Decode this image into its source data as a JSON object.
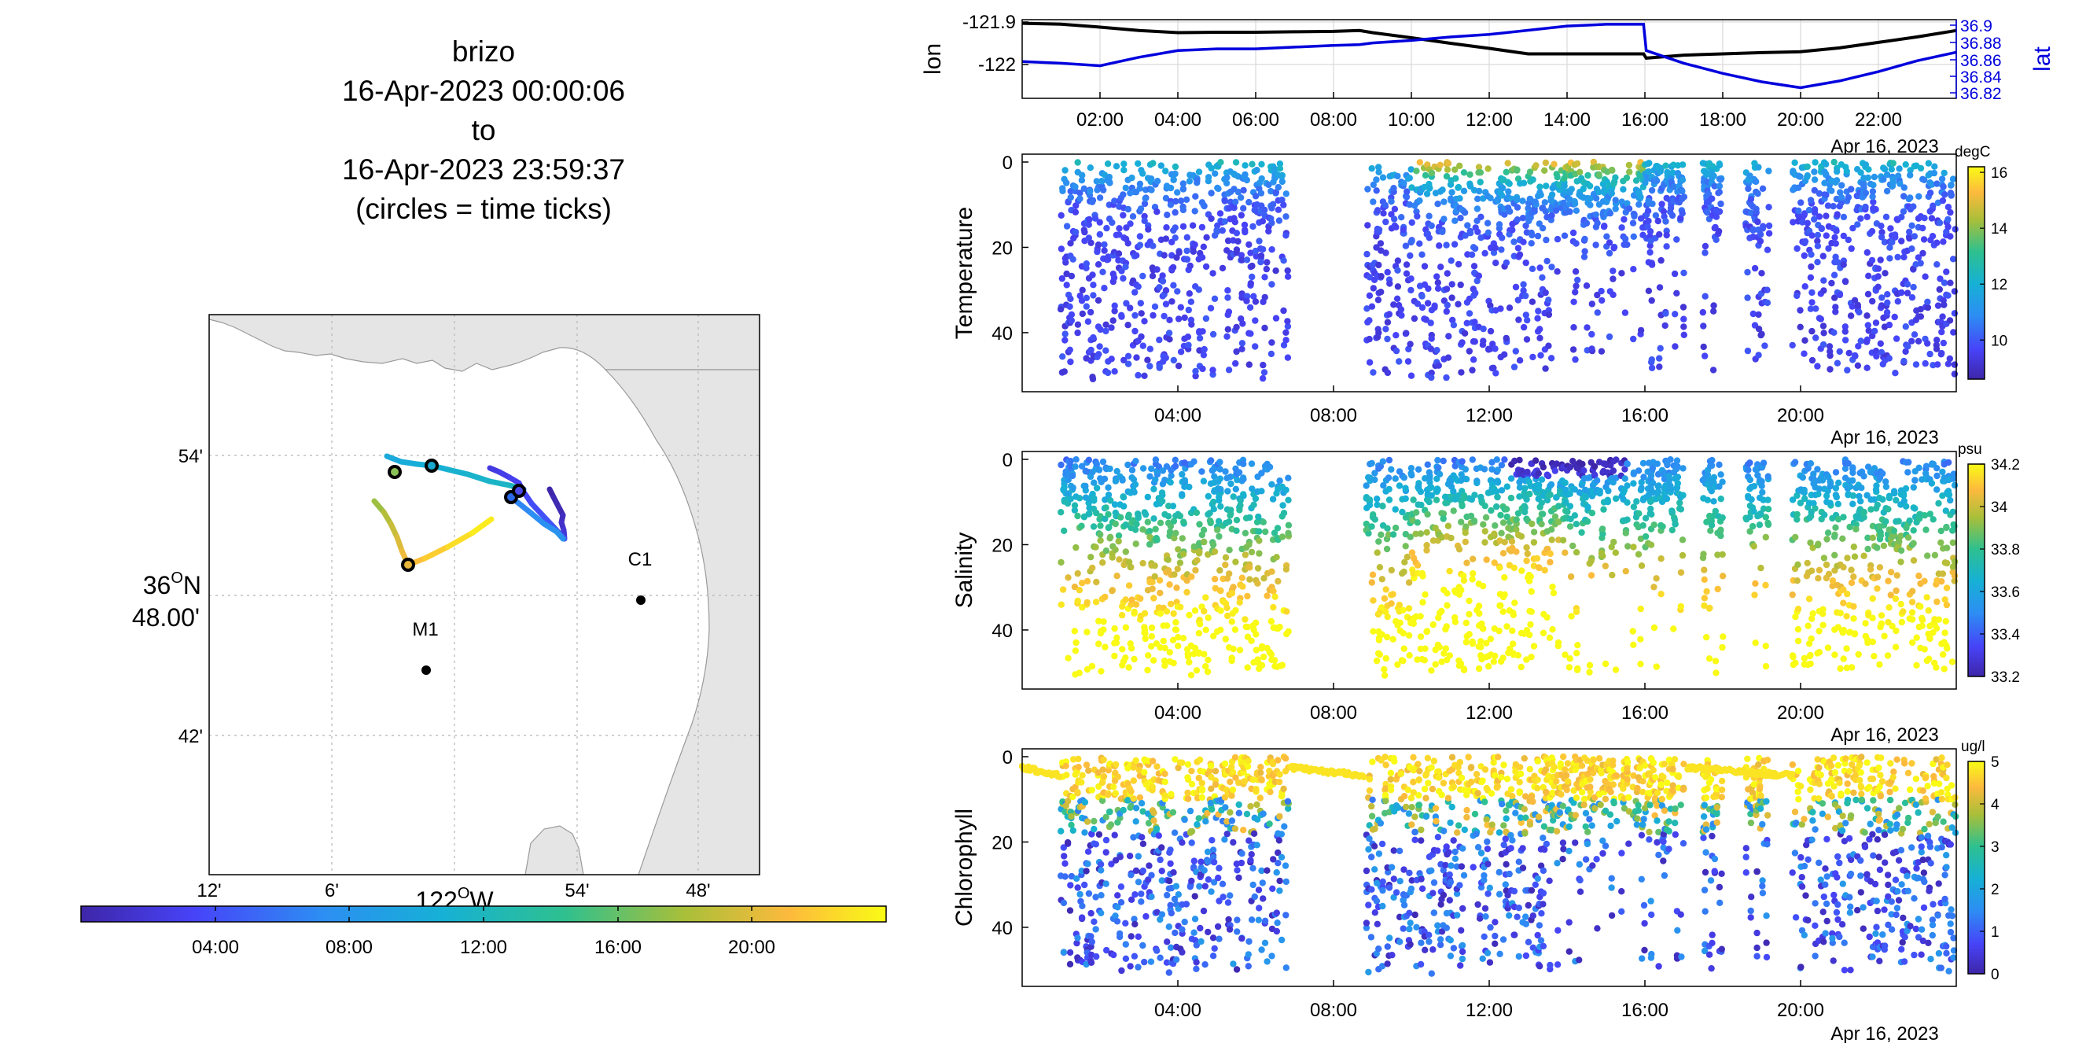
{
  "colors": {
    "lon_line": "#000000",
    "lat_line": "#0000dd",
    "land": "#e5e5e5",
    "parula": [
      "#3e26a8",
      "#4743f8",
      "#2d8ef3",
      "#16b1d5",
      "#2ec08f",
      "#a9bf39",
      "#fdba3d",
      "#f9fb15"
    ]
  },
  "title": {
    "line1": "brizo",
    "line2": "16-Apr-2023 00:00:06",
    "line3": "to",
    "line4": "16-Apr-2023 23:59:37",
    "line5": "(circles = time ticks)"
  },
  "map": {
    "lat_labels": [
      "54'",
      "42'"
    ],
    "lat_center_line1": "36",
    "lat_center_sup": "O",
    "lat_center_suffix": "N",
    "lat_center_line2": "48.00'",
    "lon_labels": [
      "12'",
      "6'",
      "54'",
      "48'"
    ],
    "lon_center": "122",
    "lon_center_sup": "O",
    "lon_center_suffix": "W",
    "stations": [
      "C1",
      "M1"
    ]
  },
  "time_colorbar": {
    "ticks": [
      "04:00",
      "08:00",
      "12:00",
      "16:00",
      "20:00"
    ]
  },
  "chart_data": [
    {
      "type": "line",
      "ylabel": "lon",
      "ylabel_right": "lat",
      "x": [
        "00:00",
        "01:00",
        "02:00",
        "03:00",
        "04:00",
        "05:00",
        "06:00",
        "07:00",
        "08:00",
        "08:40",
        "09:00",
        "10:00",
        "11:00",
        "12:00",
        "13:00",
        "14:00",
        "15:00",
        "15:58",
        "16:02",
        "17:00",
        "18:00",
        "19:00",
        "20:00",
        "21:00",
        "22:00",
        "23:00",
        "24:00"
      ],
      "series": [
        {
          "name": "lon",
          "values": [
            -121.903,
            -121.905,
            -121.912,
            -121.92,
            -121.925,
            -121.924,
            -121.924,
            -121.923,
            -121.922,
            -121.92,
            -121.925,
            -121.937,
            -121.95,
            -121.962,
            -121.975,
            -121.975,
            -121.975,
            -121.975,
            -121.985,
            -121.978,
            -121.975,
            -121.972,
            -121.97,
            -121.961,
            -121.948,
            -121.935,
            -121.92
          ]
        },
        {
          "name": "lat",
          "values": [
            36.857,
            36.855,
            36.852,
            36.862,
            36.87,
            36.872,
            36.872,
            36.874,
            36.876,
            36.877,
            36.879,
            36.882,
            36.886,
            36.889,
            36.894,
            36.899,
            36.901,
            36.901,
            36.87,
            36.855,
            36.843,
            36.833,
            36.826,
            36.834,
            36.845,
            36.858,
            36.868
          ]
        }
      ],
      "ytick_labels_left": [
        "-121.9",
        "-122"
      ],
      "ytick_labels_right": [
        "36.9",
        "36.88",
        "36.86",
        "36.84",
        "36.82"
      ],
      "xtick_labels": [
        "02:00",
        "04:00",
        "06:00",
        "08:00",
        "10:00",
        "12:00",
        "14:00",
        "16:00",
        "18:00",
        "20:00",
        "22:00"
      ],
      "date_label": "Apr 16, 2023",
      "grid": true
    },
    {
      "type": "scatter",
      "ylabel": "Temperature",
      "ytick_labels": [
        "0",
        "20",
        "40"
      ],
      "ylim": [
        0,
        52
      ],
      "xtick_labels": [
        "04:00",
        "08:00",
        "12:00",
        "16:00",
        "20:00"
      ],
      "date_label": "Apr 16, 2023",
      "colorbar": {
        "unit": "degC",
        "ticks": [
          "16",
          "14",
          "12",
          "10"
        ],
        "range": [
          8.6,
          16.2
        ]
      }
    },
    {
      "type": "scatter",
      "ylabel": "Salinity",
      "ytick_labels": [
        "0",
        "20",
        "40"
      ],
      "ylim": [
        0,
        52
      ],
      "xtick_labels": [
        "04:00",
        "08:00",
        "12:00",
        "16:00",
        "20:00"
      ],
      "date_label": "Apr 16, 2023",
      "colorbar": {
        "unit": "psu",
        "ticks": [
          "34.2",
          "34",
          "33.8",
          "33.6",
          "33.4",
          "33.2"
        ],
        "range": [
          33.2,
          34.2
        ]
      }
    },
    {
      "type": "scatter",
      "ylabel": "Chlorophyll",
      "ytick_labels": [
        "0",
        "20",
        "40"
      ],
      "ylim": [
        0,
        52
      ],
      "xtick_labels": [
        "04:00",
        "08:00",
        "12:00",
        "16:00",
        "20:00"
      ],
      "date_label": "Apr 16, 2023",
      "colorbar": {
        "unit": "ug/l",
        "ticks": [
          "5",
          "4",
          "3",
          "2",
          "1",
          "0"
        ],
        "range": [
          0,
          5
        ]
      }
    }
  ]
}
